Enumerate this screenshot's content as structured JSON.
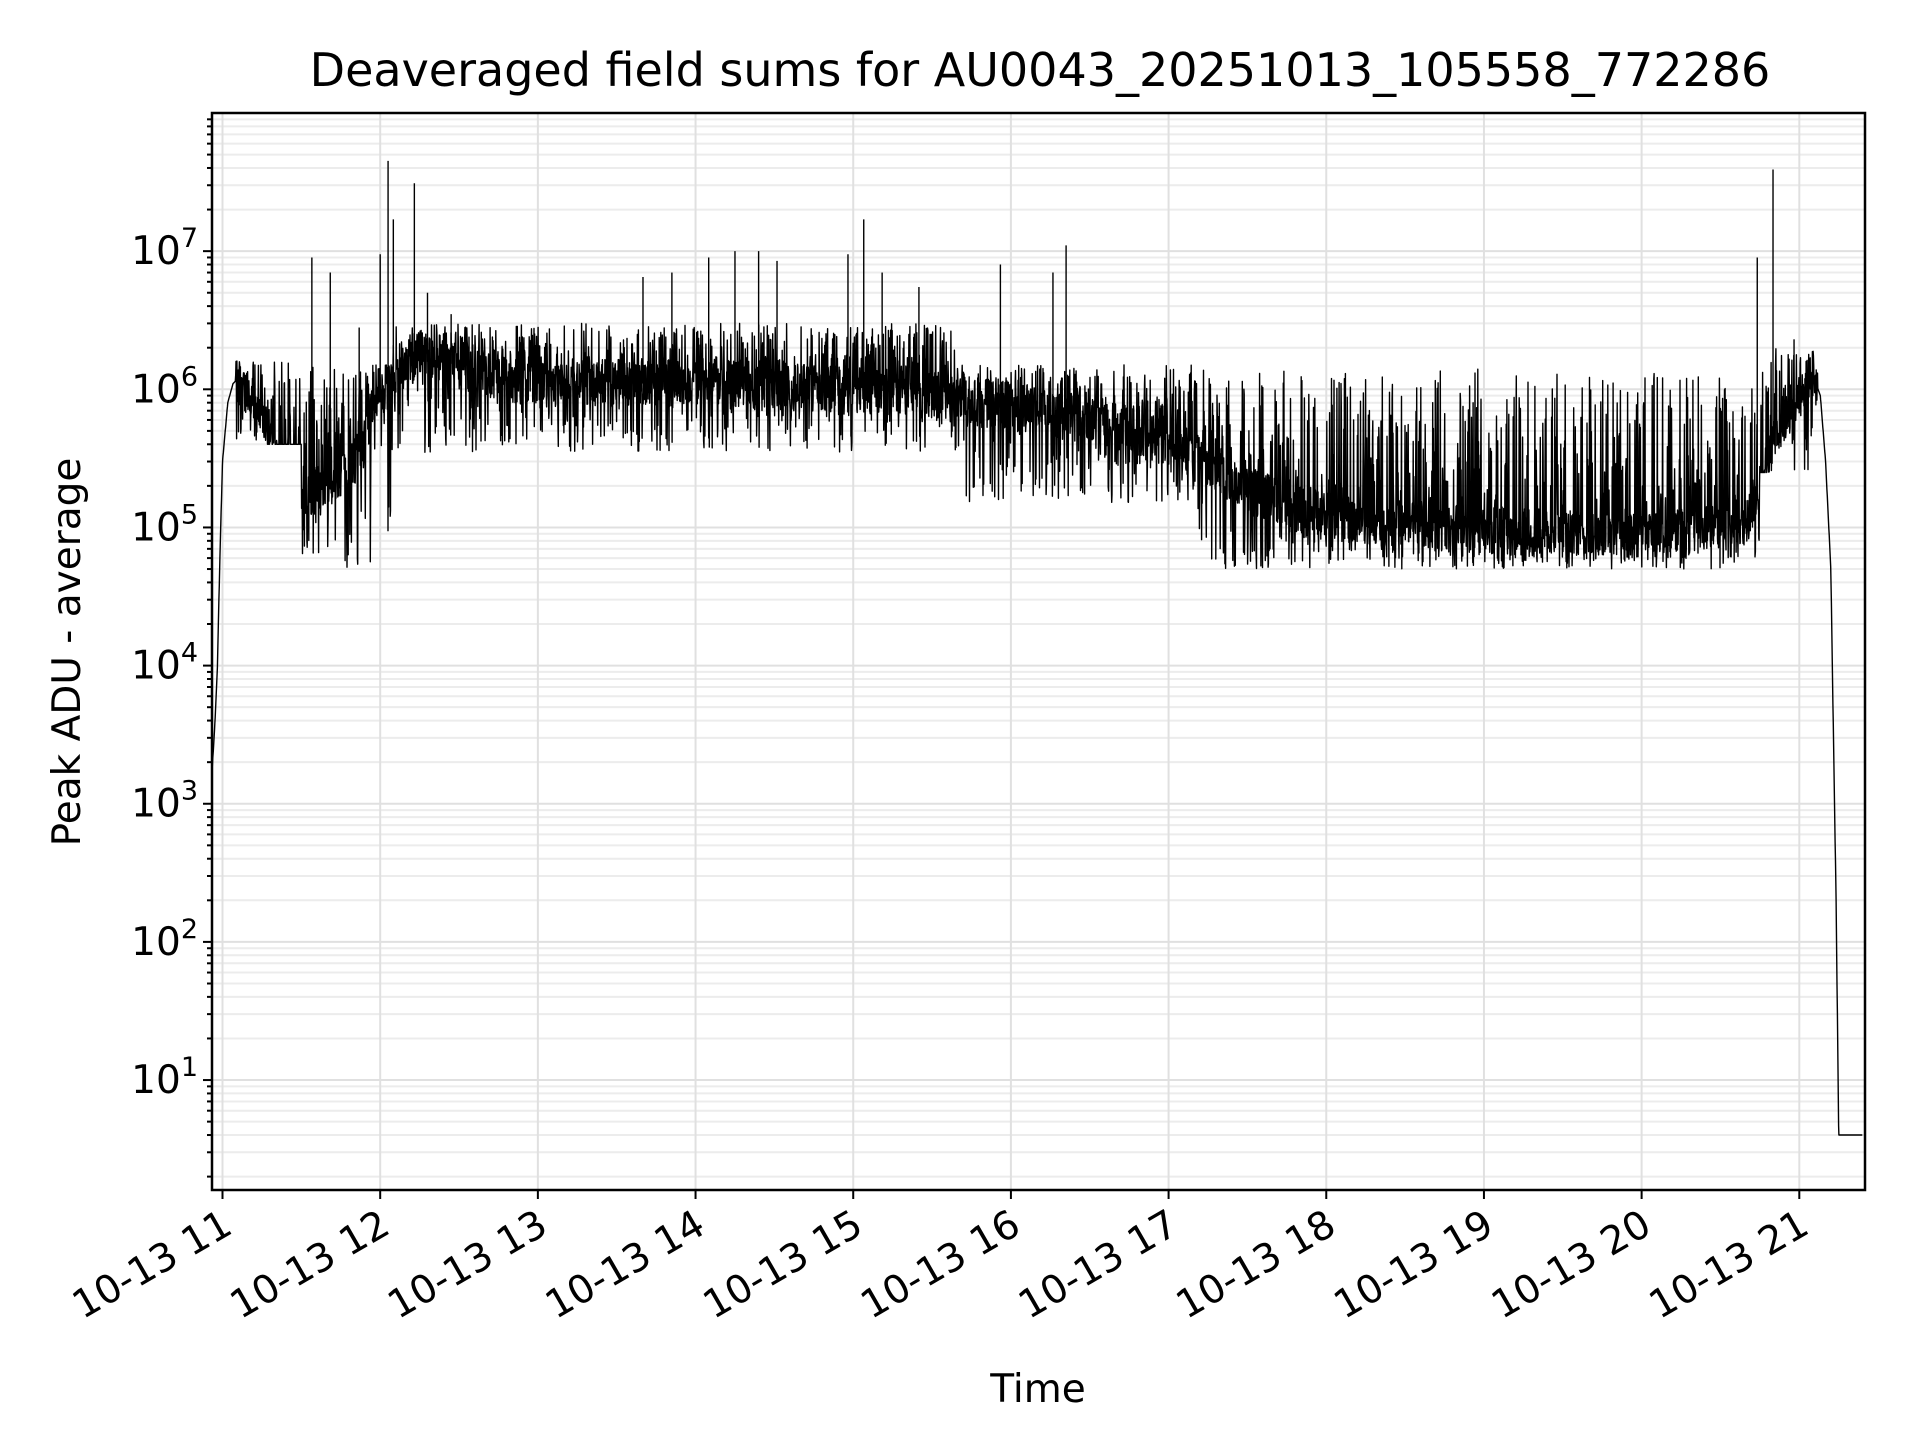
{
  "chart_data": {
    "type": "line",
    "title": "Deaveraged field sums for AU0043_20251013_105558_772286",
    "xlabel": "Time",
    "ylabel": "Peak ADU - average",
    "yscale": "log",
    "ylim": [
      1.6,
      100000000
    ],
    "xlim": [
      "2025-10-13 10:56",
      "2025-10-13 21:25"
    ],
    "grid": true,
    "x_ticks": [
      {
        "value": "2025-10-13 11:00",
        "label": "10-13 11"
      },
      {
        "value": "2025-10-13 12:00",
        "label": "10-13 12"
      },
      {
        "value": "2025-10-13 13:00",
        "label": "10-13 13"
      },
      {
        "value": "2025-10-13 14:00",
        "label": "10-13 14"
      },
      {
        "value": "2025-10-13 15:00",
        "label": "10-13 15"
      },
      {
        "value": "2025-10-13 16:00",
        "label": "10-13 16"
      },
      {
        "value": "2025-10-13 17:00",
        "label": "10-13 17"
      },
      {
        "value": "2025-10-13 18:00",
        "label": "10-13 18"
      },
      {
        "value": "2025-10-13 19:00",
        "label": "10-13 19"
      },
      {
        "value": "2025-10-13 20:00",
        "label": "10-13 20"
      },
      {
        "value": "2025-10-13 21:00",
        "label": "10-13 21"
      }
    ],
    "y_ticks": [
      {
        "value": 10,
        "base": "10",
        "exp": "1"
      },
      {
        "value": 100,
        "base": "10",
        "exp": "2"
      },
      {
        "value": 1000,
        "base": "10",
        "exp": "3"
      },
      {
        "value": 10000,
        "base": "10",
        "exp": "4"
      },
      {
        "value": 100000,
        "base": "10",
        "exp": "5"
      },
      {
        "value": 1000000,
        "base": "10",
        "exp": "6"
      },
      {
        "value": 10000000,
        "base": "10",
        "exp": "7"
      }
    ],
    "series": [
      {
        "color": "#000000",
        "x": [
          "2025-10-13 10:56",
          "2025-10-13 10:57",
          "2025-10-13 10:58",
          "2025-10-13 10:59",
          "2025-10-13 11:00",
          "2025-10-13 11:02",
          "2025-10-13 11:04",
          "2025-10-13 11:06",
          "2025-10-13 11:08",
          "2025-10-13 11:10",
          "2025-10-13 11:15",
          "2025-10-13 11:20",
          "2025-10-13 11:25",
          "2025-10-13 11:30",
          "2025-10-13 11:35",
          "2025-10-13 11:40",
          "2025-10-13 11:45",
          "2025-10-13 11:50",
          "2025-10-13 11:55",
          "2025-10-13 12:00",
          "2025-10-13 12:05",
          "2025-10-13 12:10",
          "2025-10-13 12:20",
          "2025-10-13 12:30",
          "2025-10-13 12:40",
          "2025-10-13 12:50",
          "2025-10-13 13:00",
          "2025-10-13 13:20",
          "2025-10-13 13:40",
          "2025-10-13 14:00",
          "2025-10-13 14:20",
          "2025-10-13 14:40",
          "2025-10-13 15:00",
          "2025-10-13 15:20",
          "2025-10-13 15:40",
          "2025-10-13 16:00",
          "2025-10-13 16:20",
          "2025-10-13 16:40",
          "2025-10-13 17:00",
          "2025-10-13 17:10",
          "2025-10-13 17:20",
          "2025-10-13 17:30",
          "2025-10-13 17:45",
          "2025-10-13 18:00",
          "2025-10-13 18:30",
          "2025-10-13 19:00",
          "2025-10-13 19:30",
          "2025-10-13 20:00",
          "2025-10-13 20:20",
          "2025-10-13 20:40",
          "2025-10-13 20:50",
          "2025-10-13 21:00",
          "2025-10-13 21:05",
          "2025-10-13 21:08",
          "2025-10-13 21:10",
          "2025-10-13 21:12",
          "2025-10-13 21:13",
          "2025-10-13 21:14",
          "2025-10-13 21:15",
          "2025-10-13 21:18",
          "2025-10-13 21:21",
          "2025-10-13 21:24"
        ],
        "y": [
          1700,
          3500,
          9000,
          60000,
          300000,
          800000,
          1100000,
          1200000,
          1000000,
          900000,
          600000,
          400000,
          250000,
          200000,
          180000,
          200000,
          250000,
          300000,
          450000,
          900000,
          1400000,
          1500000,
          1600000,
          1500000,
          1300000,
          1200000,
          1150000,
          1100000,
          1100000,
          1150000,
          1100000,
          1050000,
          1000000,
          950000,
          850000,
          750000,
          650000,
          550000,
          420000,
          330000,
          250000,
          190000,
          140000,
          120000,
          105000,
          95000,
          90000,
          85000,
          95000,
          110000,
          400000,
          900000,
          1300000,
          900000,
          300000,
          50000,
          3000,
          200,
          4,
          4,
          4,
          4
        ]
      }
    ],
    "spikes": [
      {
        "x": "2025-10-13 11:34",
        "y": 9000000
      },
      {
        "x": "2025-10-13 11:41",
        "y": 7000000
      },
      {
        "x": "2025-10-13 11:52",
        "y": 2800000
      },
      {
        "x": "2025-10-13 12:00",
        "y": 9500000
      },
      {
        "x": "2025-10-13 12:03",
        "y": 45000000
      },
      {
        "x": "2025-10-13 12:05",
        "y": 17000000
      },
      {
        "x": "2025-10-13 12:13",
        "y": 31000000
      },
      {
        "x": "2025-10-13 12:18",
        "y": 5000000
      },
      {
        "x": "2025-10-13 12:27",
        "y": 3500000
      },
      {
        "x": "2025-10-13 13:40",
        "y": 6500000
      },
      {
        "x": "2025-10-13 13:51",
        "y": 7000000
      },
      {
        "x": "2025-10-13 14:05",
        "y": 9000000
      },
      {
        "x": "2025-10-13 14:15",
        "y": 10000000
      },
      {
        "x": "2025-10-13 14:24",
        "y": 10000000
      },
      {
        "x": "2025-10-13 14:31",
        "y": 8500000
      },
      {
        "x": "2025-10-13 14:58",
        "y": 9500000
      },
      {
        "x": "2025-10-13 15:04",
        "y": 17000000
      },
      {
        "x": "2025-10-13 15:11",
        "y": 7000000
      },
      {
        "x": "2025-10-13 15:25",
        "y": 5500000
      },
      {
        "x": "2025-10-13 15:56",
        "y": 8000000
      },
      {
        "x": "2025-10-13 16:16",
        "y": 7000000
      },
      {
        "x": "2025-10-13 16:21",
        "y": 11000000
      },
      {
        "x": "2025-10-13 20:44",
        "y": 9000000
      },
      {
        "x": "2025-10-13 20:50",
        "y": 39000000
      },
      {
        "x": "2025-10-13 20:58",
        "y": 2300000
      }
    ],
    "noise_bands": [
      {
        "x": [
          "2025-10-13 11:05",
          "2025-10-13 11:30"
        ],
        "low": 400000,
        "high": 1600000
      },
      {
        "x": [
          "2025-10-13 11:30",
          "2025-10-13 12:05"
        ],
        "low": 45000,
        "high": 1500000
      },
      {
        "x": [
          "2025-10-13 12:05",
          "2025-10-13 15:40"
        ],
        "low": 350000,
        "high": 3000000
      },
      {
        "x": [
          "2025-10-13 15:40",
          "2025-10-13 17:10"
        ],
        "low": 150000,
        "high": 1500000
      },
      {
        "x": [
          "2025-10-13 17:10",
          "2025-10-13 20:45"
        ],
        "low": 50000,
        "high": 1400000
      },
      {
        "x": [
          "2025-10-13 20:45",
          "2025-10-13 21:07"
        ],
        "low": 250000,
        "high": 2000000
      }
    ]
  }
}
